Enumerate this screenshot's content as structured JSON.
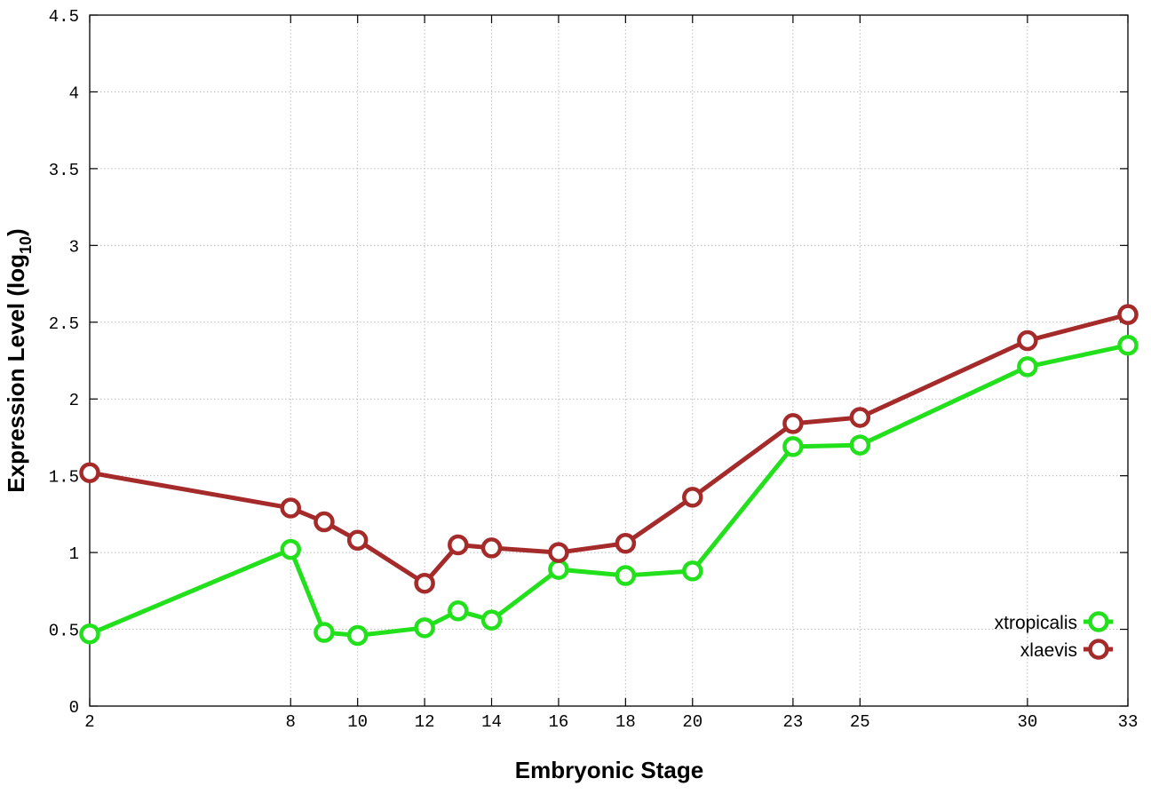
{
  "chart_data": {
    "type": "line",
    "xlabel": "Embryonic Stage",
    "ylabel_main": "Expression Level (log",
    "ylabel_sub": "10",
    "ylabel_close": ")",
    "xlim": [
      2,
      33
    ],
    "ylim": [
      0,
      4.5
    ],
    "x_ticks": [
      {
        "value": 2,
        "label": "2"
      },
      {
        "value": 8,
        "label": "8"
      },
      {
        "value": 10,
        "label": "10"
      },
      {
        "value": 12,
        "label": "12"
      },
      {
        "value": 14,
        "label": "14"
      },
      {
        "value": 16,
        "label": "16"
      },
      {
        "value": 18,
        "label": "18"
      },
      {
        "value": 20,
        "label": "20"
      },
      {
        "value": 23,
        "label": "23"
      },
      {
        "value": 25,
        "label": "25"
      },
      {
        "value": 30,
        "label": "30"
      },
      {
        "value": 33,
        "label": "33"
      }
    ],
    "y_ticks": [
      {
        "value": 0,
        "label": "0"
      },
      {
        "value": 0.5,
        "label": "0.5"
      },
      {
        "value": 1,
        "label": "1"
      },
      {
        "value": 1.5,
        "label": "1.5"
      },
      {
        "value": 2,
        "label": "2"
      },
      {
        "value": 2.5,
        "label": "2.5"
      },
      {
        "value": 3,
        "label": "3"
      },
      {
        "value": 3.5,
        "label": "3.5"
      },
      {
        "value": 4,
        "label": "4"
      },
      {
        "value": 4.5,
        "label": "4.5"
      }
    ],
    "grid": true,
    "legend_position": "bottom-right",
    "series": [
      {
        "name": "xtropicalis",
        "color": "#22e01b",
        "x": [
          2,
          8,
          9,
          10,
          12,
          13,
          14,
          16,
          18,
          20,
          23,
          25,
          30,
          33
        ],
        "y": [
          0.47,
          1.02,
          0.48,
          0.46,
          0.51,
          0.62,
          0.56,
          0.89,
          0.85,
          0.88,
          1.69,
          1.7,
          2.21,
          2.35
        ]
      },
      {
        "name": "xlaevis",
        "color": "#a52a2a",
        "x": [
          2,
          8,
          9,
          10,
          12,
          13,
          14,
          16,
          18,
          20,
          23,
          25,
          30,
          33
        ],
        "y": [
          1.52,
          1.29,
          1.2,
          1.08,
          0.8,
          1.05,
          1.03,
          1.0,
          1.06,
          1.36,
          1.84,
          1.88,
          2.38,
          2.55
        ]
      }
    ]
  }
}
